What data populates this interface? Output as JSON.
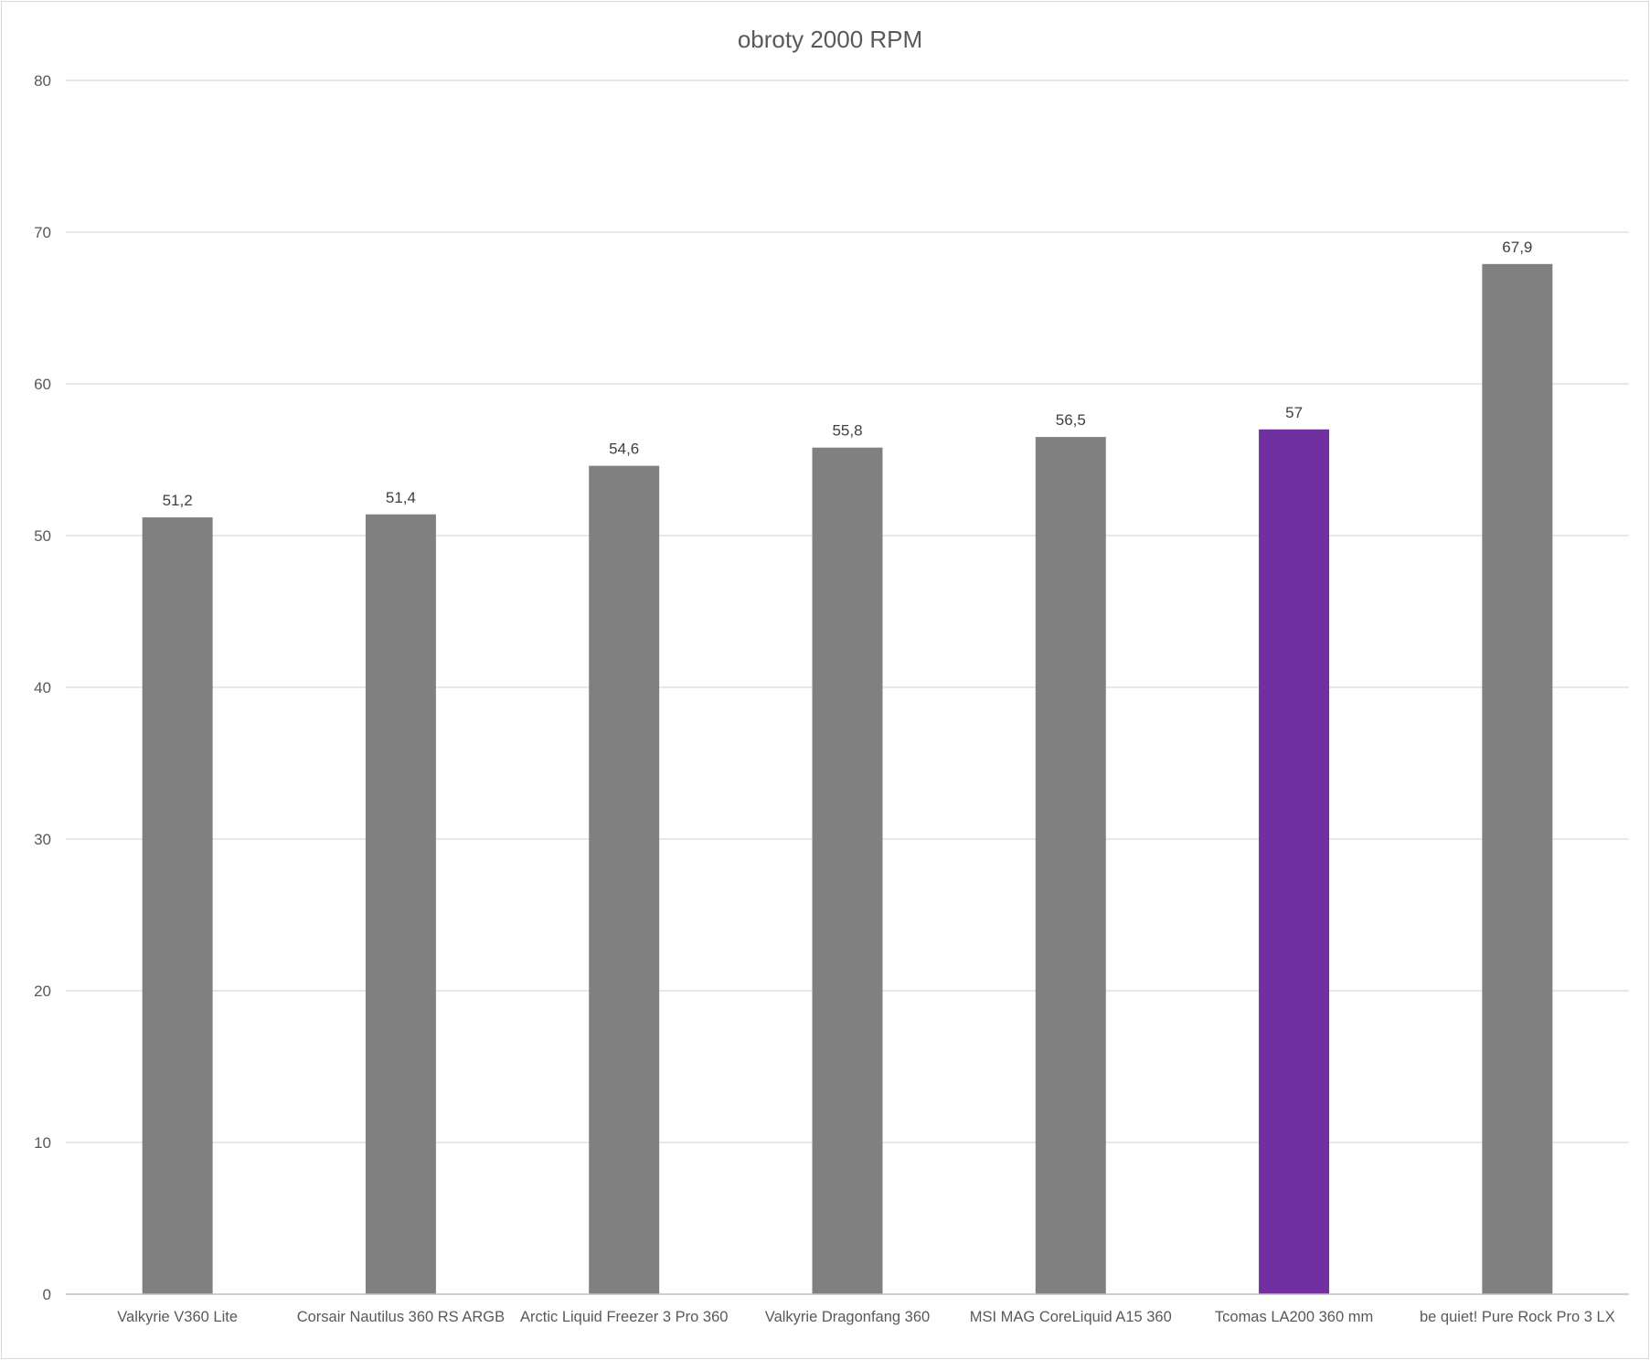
{
  "chart_data": {
    "type": "bar",
    "title": "obroty 2000 RPM",
    "xlabel": "",
    "ylabel": "",
    "ylim": [
      0,
      80
    ],
    "yticks": [
      0,
      10,
      20,
      30,
      40,
      50,
      60,
      70,
      80
    ],
    "grid": true,
    "legend": "none",
    "categories": [
      "Valkyrie V360 Lite",
      "Corsair Nautilus 360 RS ARGB",
      "Arctic Liquid Freezer 3 Pro 360",
      "Valkyrie Dragonfang 360",
      "MSI MAG CoreLiquid A15 360",
      "Tcomas LA200 360 mm",
      "be quiet! Pure Rock Pro 3 LX"
    ],
    "values": [
      51.2,
      51.4,
      54.6,
      55.8,
      56.5,
      57,
      67.9
    ],
    "value_labels": [
      "51,2",
      "51,4",
      "54,6",
      "55,8",
      "56,5",
      "57",
      "67,9"
    ],
    "bar_colors": [
      "#808080",
      "#808080",
      "#808080",
      "#808080",
      "#808080",
      "#7030a0",
      "#808080"
    ],
    "colors": {
      "default_bar": "#808080",
      "highlight_bar": "#7030a0",
      "gridline": "#d9d9d9",
      "text": "#595959"
    }
  }
}
